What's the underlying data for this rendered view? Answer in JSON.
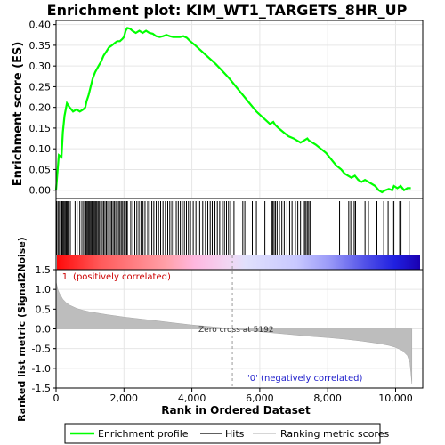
{
  "chart_data": {
    "type": "line",
    "title": "Enrichment plot: KIM_WT1_TARGETS_8HR_UP",
    "top_panel": {
      "ylabel": "Enrichment score (ES)",
      "ylim": [
        -0.02,
        0.41
      ],
      "yticks": [
        "0.00",
        "0.05",
        "0.10",
        "0.15",
        "0.20",
        "0.25",
        "0.30",
        "0.35",
        "0.40"
      ],
      "ytick_values": [
        0.0,
        0.05,
        0.1,
        0.15,
        0.2,
        0.25,
        0.3,
        0.35,
        0.4
      ],
      "series_name": "Enrichment profile",
      "color": "#00ff00",
      "x": [
        0,
        80,
        160,
        200,
        250,
        320,
        400,
        500,
        600,
        700,
        800,
        860,
        900,
        960,
        1020,
        1080,
        1150,
        1250,
        1320,
        1400,
        1480,
        1560,
        1650,
        1720,
        1800,
        1880,
        1950,
        2000,
        2050,
        2100,
        2180,
        2250,
        2350,
        2450,
        2550,
        2650,
        2750,
        2850,
        2950,
        3050,
        3150,
        3250,
        3350,
        3450,
        3550,
        3650,
        3750,
        3850,
        3950,
        4100,
        4300,
        4500,
        4700,
        4900,
        5100,
        5300,
        5500,
        5700,
        5900,
        6100,
        6300,
        6400,
        6450,
        6550,
        6700,
        6850,
        7000,
        7100,
        7200,
        7300,
        7400,
        7450,
        7550,
        7650,
        7800,
        7950,
        8100,
        8250,
        8400,
        8500,
        8600,
        8700,
        8800,
        8900,
        9000,
        9100,
        9200,
        9300,
        9400,
        9500,
        9600,
        9700,
        9800,
        9900,
        9950,
        10050,
        10150,
        10250,
        10350,
        10450
      ],
      "es": [
        0.0,
        0.085,
        0.08,
        0.14,
        0.18,
        0.21,
        0.2,
        0.19,
        0.195,
        0.19,
        0.195,
        0.2,
        0.215,
        0.23,
        0.25,
        0.27,
        0.285,
        0.3,
        0.31,
        0.325,
        0.335,
        0.345,
        0.35,
        0.355,
        0.36,
        0.36,
        0.365,
        0.37,
        0.385,
        0.392,
        0.39,
        0.385,
        0.38,
        0.385,
        0.38,
        0.385,
        0.38,
        0.378,
        0.372,
        0.37,
        0.372,
        0.375,
        0.372,
        0.37,
        0.37,
        0.37,
        0.372,
        0.368,
        0.36,
        0.35,
        0.335,
        0.32,
        0.305,
        0.288,
        0.27,
        0.25,
        0.23,
        0.21,
        0.19,
        0.175,
        0.16,
        0.165,
        0.158,
        0.15,
        0.14,
        0.13,
        0.125,
        0.12,
        0.115,
        0.12,
        0.125,
        0.12,
        0.115,
        0.11,
        0.1,
        0.09,
        0.075,
        0.06,
        0.05,
        0.04,
        0.035,
        0.03,
        0.035,
        0.025,
        0.02,
        0.025,
        0.02,
        0.015,
        0.01,
        0.0,
        -0.005,
        0.0,
        0.003,
        0.0,
        0.01,
        0.005,
        0.01,
        0.0,
        0.005,
        0.005
      ]
    },
    "hits": {
      "series_name": "Hits",
      "positions": [
        20,
        60,
        100,
        140,
        160,
        180,
        210,
        240,
        270,
        300,
        330,
        350,
        380,
        420,
        560,
        620,
        700,
        760,
        810,
        850,
        880,
        910,
        940,
        970,
        1000,
        1030,
        1060,
        1090,
        1120,
        1150,
        1180,
        1210,
        1250,
        1280,
        1320,
        1360,
        1400,
        1440,
        1480,
        1520,
        1560,
        1600,
        1640,
        1680,
        1720,
        1760,
        1800,
        1840,
        1880,
        1920,
        1960,
        2000,
        2040,
        2080,
        2100,
        2200,
        2260,
        2320,
        2380,
        2440,
        2500,
        2560,
        2620,
        2700,
        2760,
        2820,
        2880,
        2950,
        3020,
        3080,
        3150,
        3220,
        3290,
        3350,
        3410,
        3470,
        3540,
        3600,
        3660,
        3720,
        3780,
        3840,
        3900,
        3960,
        4040,
        4120,
        4230,
        4320,
        4400,
        4470,
        4540,
        4600,
        4680,
        4750,
        4820,
        4900,
        4960,
        5020,
        5080,
        5140,
        5240,
        5500,
        5560,
        5780,
        5900,
        6150,
        6350,
        6380,
        6420,
        6460,
        6510,
        6580,
        6650,
        6720,
        6800,
        6880,
        6950,
        7050,
        7120,
        7200,
        7280,
        7320,
        7360,
        7400,
        7440,
        7480,
        8350,
        8620,
        8680,
        8780,
        8820,
        9100,
        9200,
        9450,
        9650,
        9780,
        9900,
        9950,
        10120,
        10160,
        10400
      ]
    },
    "ranking": {
      "series_name": "Ranking metric scores",
      "xlabel": "Rank in Ordered Dataset",
      "ylabel": "Ranked list metric (Signal2Noise)",
      "xlim": [
        0,
        10800
      ],
      "ylim": [
        -1.5,
        1.5
      ],
      "xticks": [
        "0",
        "2,000",
        "4,000",
        "6,000",
        "8,000",
        "10,000"
      ],
      "xtick_values": [
        0,
        2000,
        4000,
        6000,
        8000,
        10000
      ],
      "yticks": [
        "-1.5",
        "-1.0",
        "-0.5",
        "0.0",
        "0.5",
        "1.0",
        "1.5"
      ],
      "ytick_values": [
        -1.5,
        -1.0,
        -0.5,
        0.0,
        0.5,
        1.0,
        1.5
      ],
      "x": [
        0,
        50,
        100,
        200,
        300,
        400,
        600,
        800,
        1000,
        1500,
        2000,
        2500,
        3000,
        3500,
        4000,
        4500,
        5000,
        5192,
        5500,
        6000,
        6500,
        7000,
        7500,
        8000,
        8500,
        9000,
        9500,
        9800,
        10000,
        10200,
        10350,
        10420,
        10450,
        10480
      ],
      "values": [
        1.2,
        1.0,
        0.9,
        0.75,
        0.66,
        0.6,
        0.52,
        0.47,
        0.43,
        0.36,
        0.3,
        0.25,
        0.2,
        0.15,
        0.1,
        0.06,
        0.02,
        0.0,
        -0.03,
        -0.07,
        -0.11,
        -0.15,
        -0.19,
        -0.22,
        -0.26,
        -0.31,
        -0.37,
        -0.42,
        -0.47,
        -0.55,
        -0.68,
        -0.85,
        -1.1,
        -1.4
      ],
      "zero_cross_label": "Zero cross at 5192",
      "zero_cross": 5192,
      "pos_label": "'1' (positively correlated)",
      "neg_label": "'0' (negatively correlated)"
    },
    "legend": [
      "Enrichment profile",
      "Hits",
      "Ranking metric scores"
    ]
  }
}
